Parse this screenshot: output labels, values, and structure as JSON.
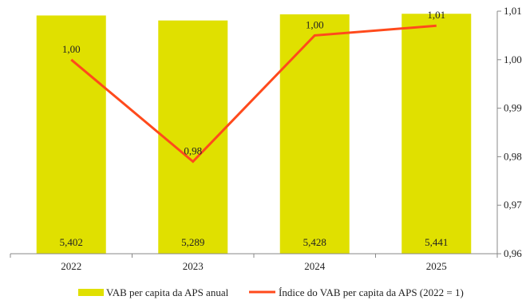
{
  "chart_data": {
    "type": "bar+line",
    "categories": [
      "2022",
      "2023",
      "2024",
      "2025"
    ],
    "series": [
      {
        "name": "VAB per capita da APS anual",
        "type": "bar",
        "values": [
          5.402,
          5.289,
          5.428,
          5.441
        ],
        "labels": [
          "5,402",
          "5,289",
          "5,428",
          "5,441"
        ],
        "color": "#e0e000"
      },
      {
        "name": "Índice do VAB per capita da APS (2022 = 1)",
        "type": "line",
        "axis": "right",
        "values": [
          1.0,
          0.979,
          1.005,
          1.007
        ],
        "labels": [
          "1,00",
          "0,98",
          "1,00",
          "1,01"
        ],
        "color": "#ff4a1c"
      }
    ],
    "y_right": {
      "ylim": [
        0.96,
        1.01
      ],
      "ticks": [
        0.96,
        0.97,
        0.98,
        0.99,
        1.0,
        1.01
      ],
      "tick_labels": [
        "0,96",
        "0,97",
        "0,98",
        "0,99",
        "1,00",
        "1,01"
      ]
    },
    "y_left_hidden": {
      "ylim": [
        0,
        5.5
      ]
    },
    "legend_position": "bottom",
    "grid": false
  }
}
